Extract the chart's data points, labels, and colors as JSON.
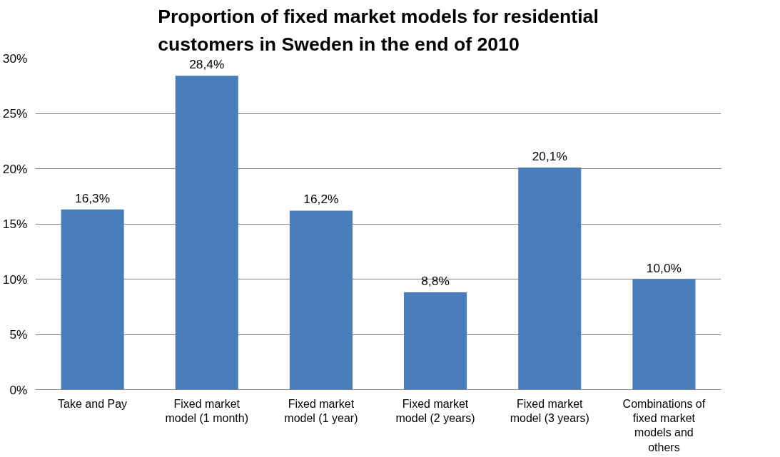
{
  "chart_data": {
    "type": "bar",
    "title": "Proportion of fixed market models for residential customers in Sweden in the end of 2010",
    "categories": [
      "Take and Pay",
      "Fixed market model (1 month)",
      "Fixed market model (1 year)",
      "Fixed market model (2 years)",
      "Fixed market model (3 years)",
      "Combinations of fixed market models and others"
    ],
    "values": [
      16.3,
      28.4,
      16.2,
      8.8,
      20.1,
      10.0
    ],
    "value_labels": [
      "16,3%",
      "28,4%",
      "16,2%",
      "8,8%",
      "20,1%",
      "10,0%"
    ],
    "color": "#4a7ebb",
    "ylim": [
      0,
      30
    ],
    "yticks": [
      {
        "value": 0,
        "label": "0%"
      },
      {
        "value": 5,
        "label": "5%"
      },
      {
        "value": 10,
        "label": "10%"
      },
      {
        "value": 15,
        "label": "15%"
      },
      {
        "value": 20,
        "label": "20%"
      },
      {
        "value": 25,
        "label": "25%"
      },
      {
        "value": 30,
        "label": "30%"
      }
    ],
    "grid": "y"
  }
}
